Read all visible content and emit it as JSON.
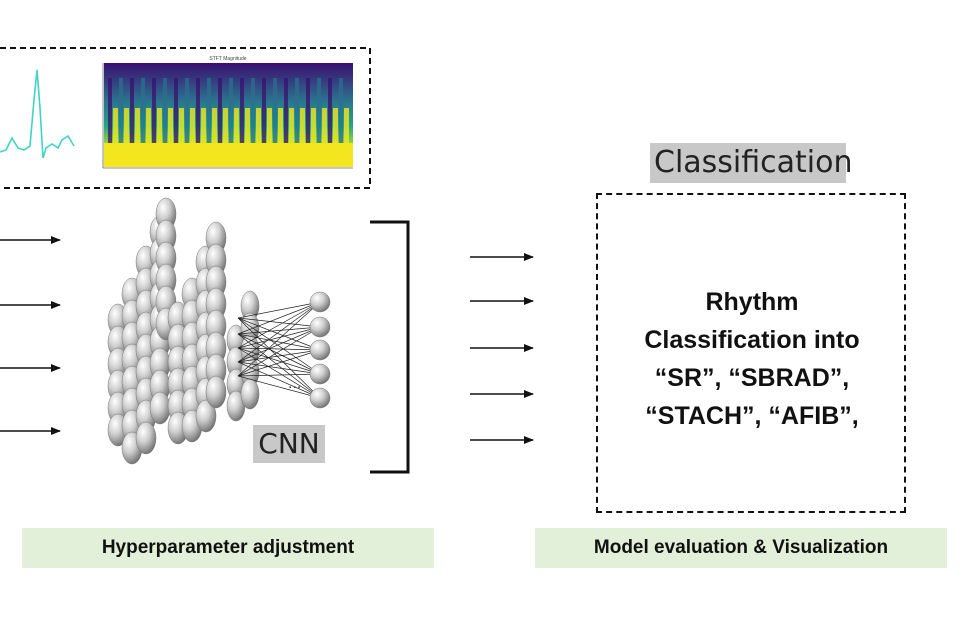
{
  "top_panel": {
    "spectrogram_title": "STFT Magnitude"
  },
  "cnn": {
    "label": "CNN",
    "ellipsis": "..."
  },
  "classification": {
    "header": "Classification",
    "box_lines": [
      "Rhythm",
      "Classification into",
      "“SR”, “SBRAD”,",
      "“STACH”, “AFIB”,"
    ]
  },
  "footer": {
    "left_bar": "Hyperparameter adjustment",
    "right_bar": "Model evaluation & Visualization"
  },
  "colors": {
    "ecg_trace": "#3fd4c4",
    "spectrogram_low": "#3b0f70",
    "spectrogram_high": "#f4e61e",
    "label_gray": "#c8c8c8",
    "bar_green": "#e2efd9"
  }
}
